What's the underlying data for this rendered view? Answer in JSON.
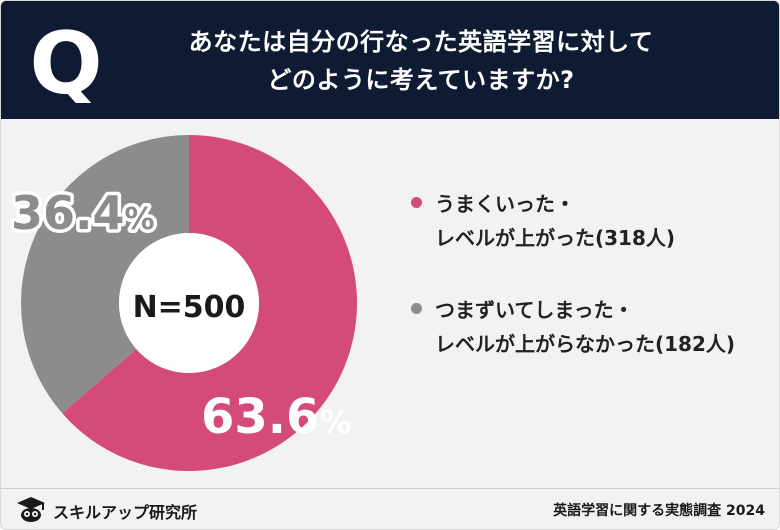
{
  "header": {
    "icon_letter": "Q",
    "question_line1": "あなたは自分の行なった英語学習に対して",
    "question_line2": "どのように考えていますか?"
  },
  "chart_data": {
    "type": "pie",
    "center_label": "N=500",
    "slices": [
      {
        "name_line1": "うまくいった・",
        "name_line2": "レベルが上がった(318人)",
        "count": 318,
        "percent": 63.6,
        "label": "63.6",
        "unit": "%",
        "color": "#d44b7b"
      },
      {
        "name_line1": "つまずいてしまった・",
        "name_line2": "レベルが上がらなかった(182人)",
        "count": 182,
        "percent": 36.4,
        "label": "36.4",
        "unit": "%",
        "color": "#8c8c8c"
      }
    ]
  },
  "footer": {
    "brand": "スキルアップ研究所",
    "source": "英語学習に関する実態調査 2024"
  },
  "colors": {
    "header_bg": "#0f1b33",
    "background": "#f2f2f2"
  }
}
